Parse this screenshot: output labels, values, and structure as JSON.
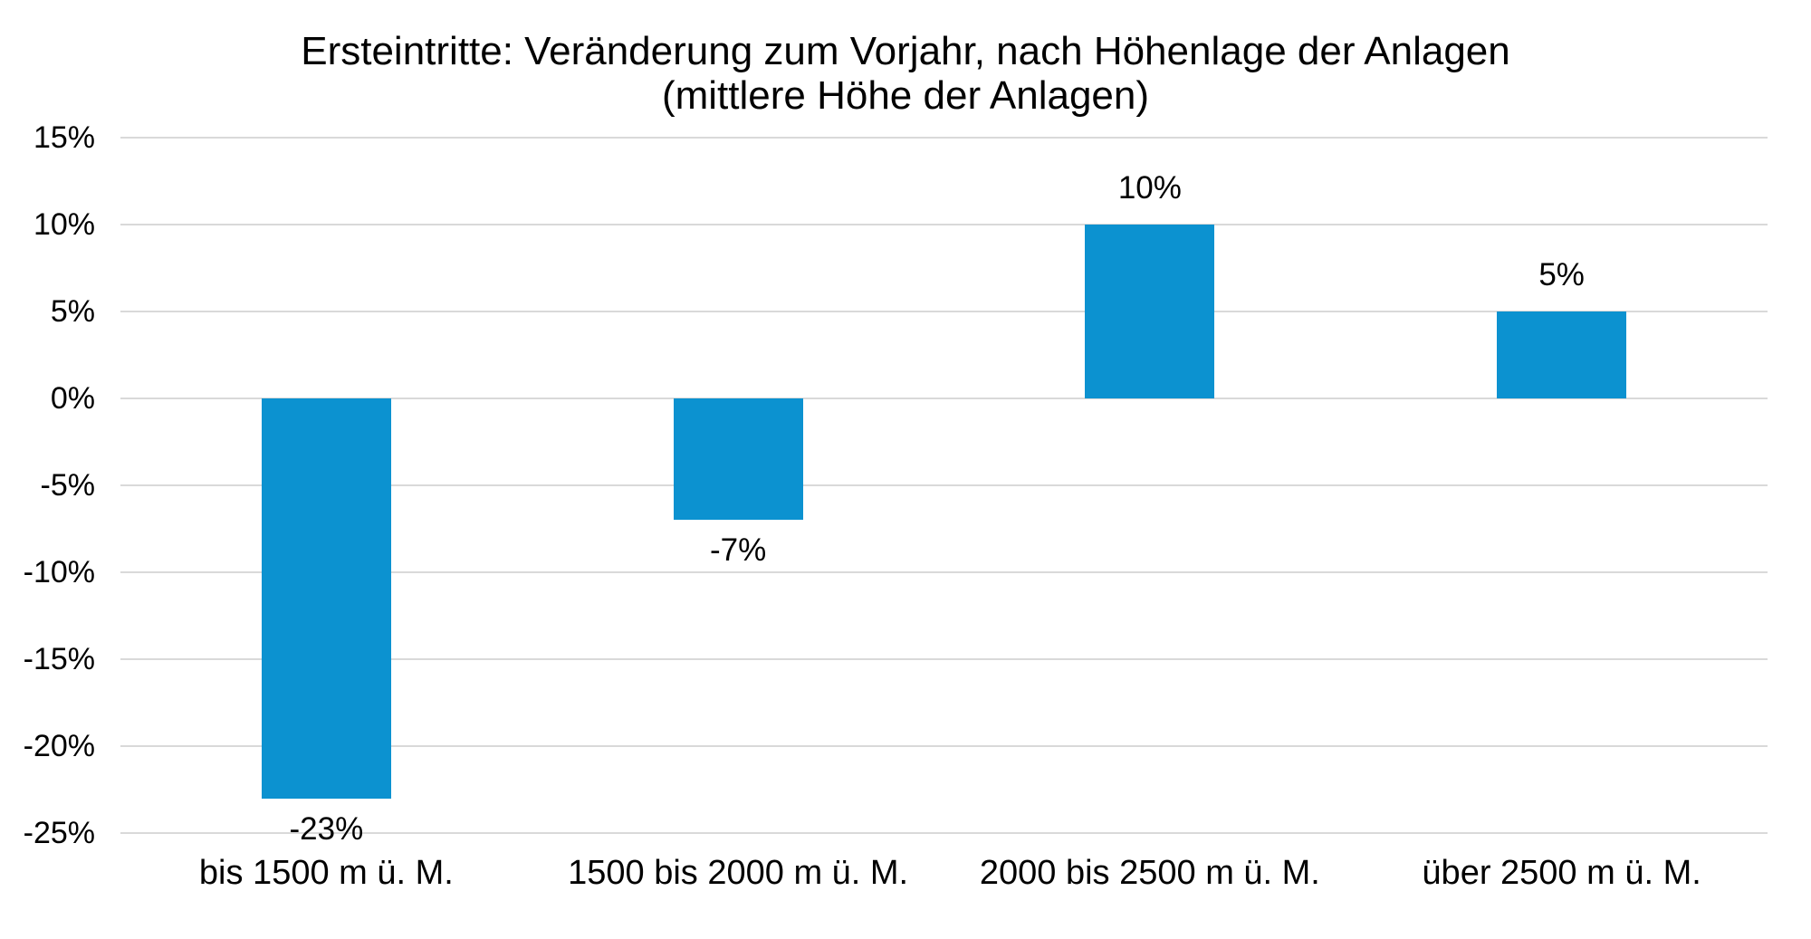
{
  "chart_data": {
    "type": "bar",
    "title": "Ersteintritte: Veränderung zum Vorjahr, nach Höhenlage der Anlagen",
    "subtitle": "(mittlere Höhe der Anlagen)",
    "categories": [
      "bis 1500 m ü. M.",
      "1500 bis 2000 m ü. M.",
      "2000 bis 2500 m ü. M.",
      "über 2500 m ü. M."
    ],
    "values": [
      -23,
      -7,
      10,
      5
    ],
    "data_labels": [
      "-23%",
      "-7%",
      "10%",
      "5%"
    ],
    "y_ticks": [
      15,
      10,
      5,
      0,
      -5,
      -10,
      -15,
      -20,
      -25
    ],
    "y_tick_labels": [
      "15%",
      "10%",
      "5%",
      "0%",
      "-5%",
      "-10%",
      "-15%",
      "-20%",
      "-25%"
    ],
    "ylim": [
      -25,
      15
    ],
    "xlabel": "",
    "ylabel": "",
    "grid": true,
    "legend": false,
    "bar_color": "#0c92d0",
    "gridline_color": "#d9d9d9",
    "text_color": "#000000",
    "background_color": "#ffffff"
  }
}
